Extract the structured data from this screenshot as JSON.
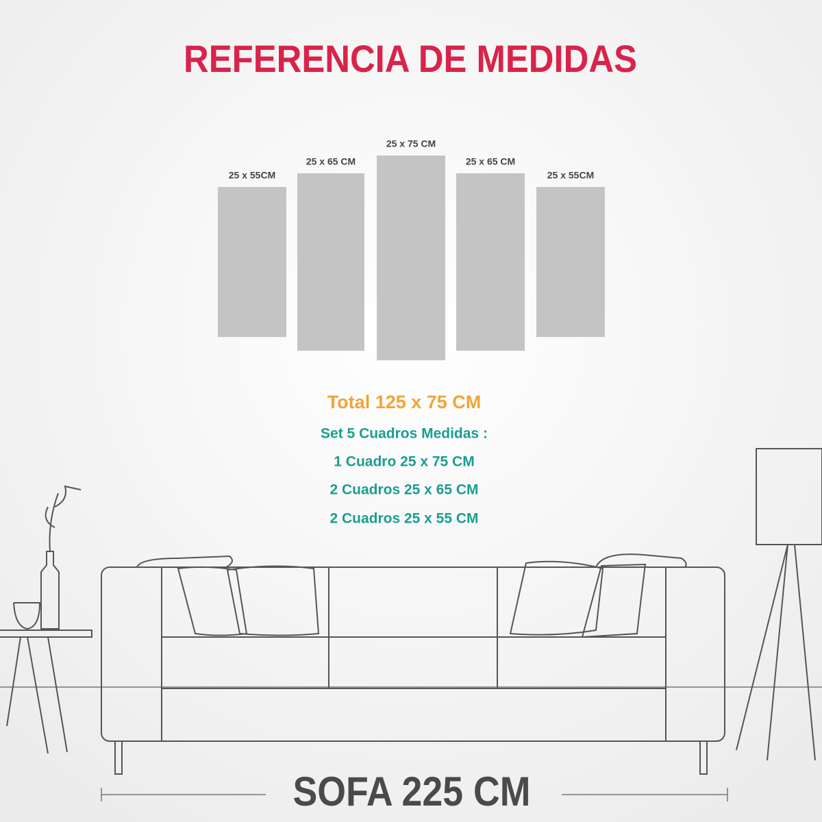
{
  "title": "REFERENCIA DE MEDIDAS",
  "panels": [
    {
      "label": "25 x 55CM"
    },
    {
      "label": "25 x 65 CM"
    },
    {
      "label": "25 x 75 CM"
    },
    {
      "label": "25 x 65 CM"
    },
    {
      "label": "25 x 55CM"
    }
  ],
  "total": "Total 125 x 75 CM",
  "details": [
    "Set 5 Cuadros Medidas :",
    "1 Cuadro 25 x 75 CM",
    "2 Cuadros 25 x 65 CM",
    "2 Cuadros 25 x 55 CM"
  ],
  "sofa_label": "SOFA 225 CM"
}
